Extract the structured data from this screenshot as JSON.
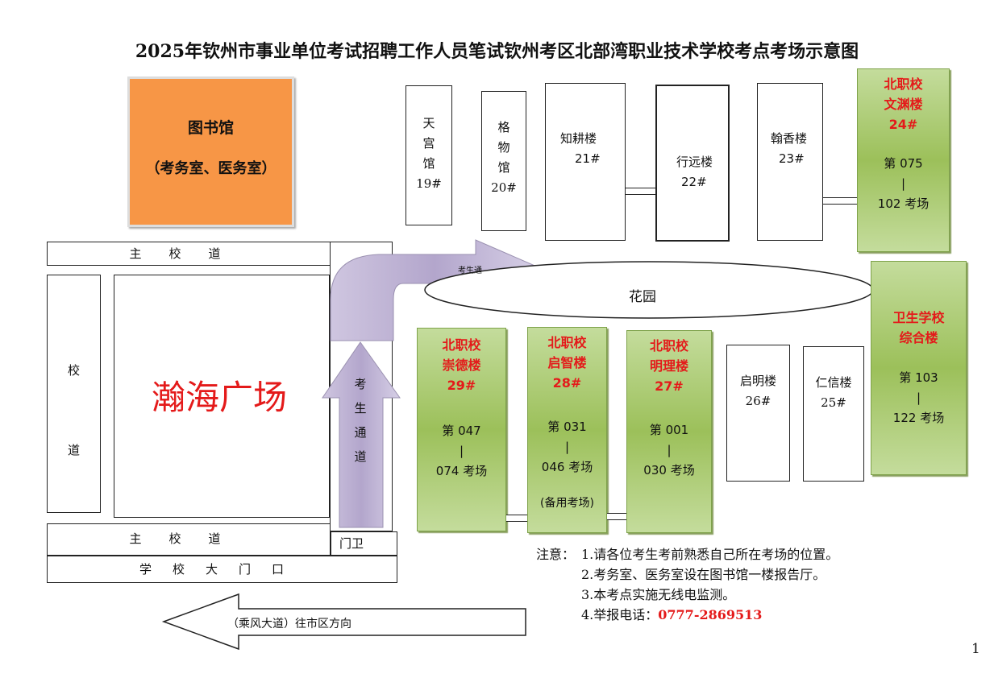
{
  "title": "2025年钦州市事业单位考试招聘工作人员笔试钦州考区北部湾职业技术学校考点考场示意图",
  "library": {
    "name": "图书馆",
    "note": "（考务室、医务室）",
    "color": "#F79646"
  },
  "buildings": {
    "b19": {
      "lines": [
        "天",
        "宫",
        "馆",
        "19#"
      ]
    },
    "b20": {
      "lines": [
        "格",
        "物",
        "馆",
        "20#"
      ]
    },
    "b21": {
      "name": "知耕楼",
      "num": "21#"
    },
    "b22": {
      "name": "行远楼",
      "num": "22#"
    },
    "b23": {
      "name": "翰香楼",
      "num": "23#"
    },
    "b24": {
      "school": "北职校",
      "name": "文渊楼",
      "num": "24#",
      "from": "第 075",
      "sep": "|",
      "to": "102 考场"
    },
    "b29": {
      "school": "北职校",
      "name": "崇德楼",
      "num": "29#",
      "from": "第 047",
      "sep": "|",
      "to": "074 考场"
    },
    "b28": {
      "school": "北职校",
      "name": "启智楼",
      "num": "28#",
      "from": "第 031",
      "sep": "|",
      "to": "046 考场",
      "note": "(备用考场)"
    },
    "b27": {
      "school": "北职校",
      "name": "明理楼",
      "num": "27#",
      "from": "第 001",
      "sep": "|",
      "to": "030 考场"
    },
    "b26": {
      "name": "启明楼",
      "num": "26#"
    },
    "b25": {
      "name": "仁信楼",
      "num": "25#"
    },
    "health": {
      "name1": "卫生学校",
      "name2": "综合楼",
      "from": "第 103",
      "sep": "|",
      "to": "122 考场"
    }
  },
  "roads": {
    "main_top": "主校道",
    "side": [
      "校",
      "道"
    ],
    "main_bottom": "主校道",
    "gate_guard": "门卫",
    "gate": "学校大门口"
  },
  "plaza": "瀚海广场",
  "garden": "花园",
  "paths": {
    "curved": "考生通",
    "vertical": [
      "考",
      "生",
      "通",
      "道"
    ]
  },
  "direction_arrow": "（乘风大道）往市区方向",
  "notes": {
    "label": "注意：",
    "items": [
      "1.请各位考生考前熟悉自己所在考场的位置。",
      "2.考务室、医务室设在图书馆一楼报告厅。",
      "3.本考点实施无线电监测。"
    ],
    "hotline_label": "4.举报电话：",
    "hotline": "0777-2869513"
  },
  "page_number": "1",
  "colors": {
    "exam_building": "#9BBB59",
    "highlight_text": "#E41A1A",
    "arrow": "#B7A9CF"
  }
}
